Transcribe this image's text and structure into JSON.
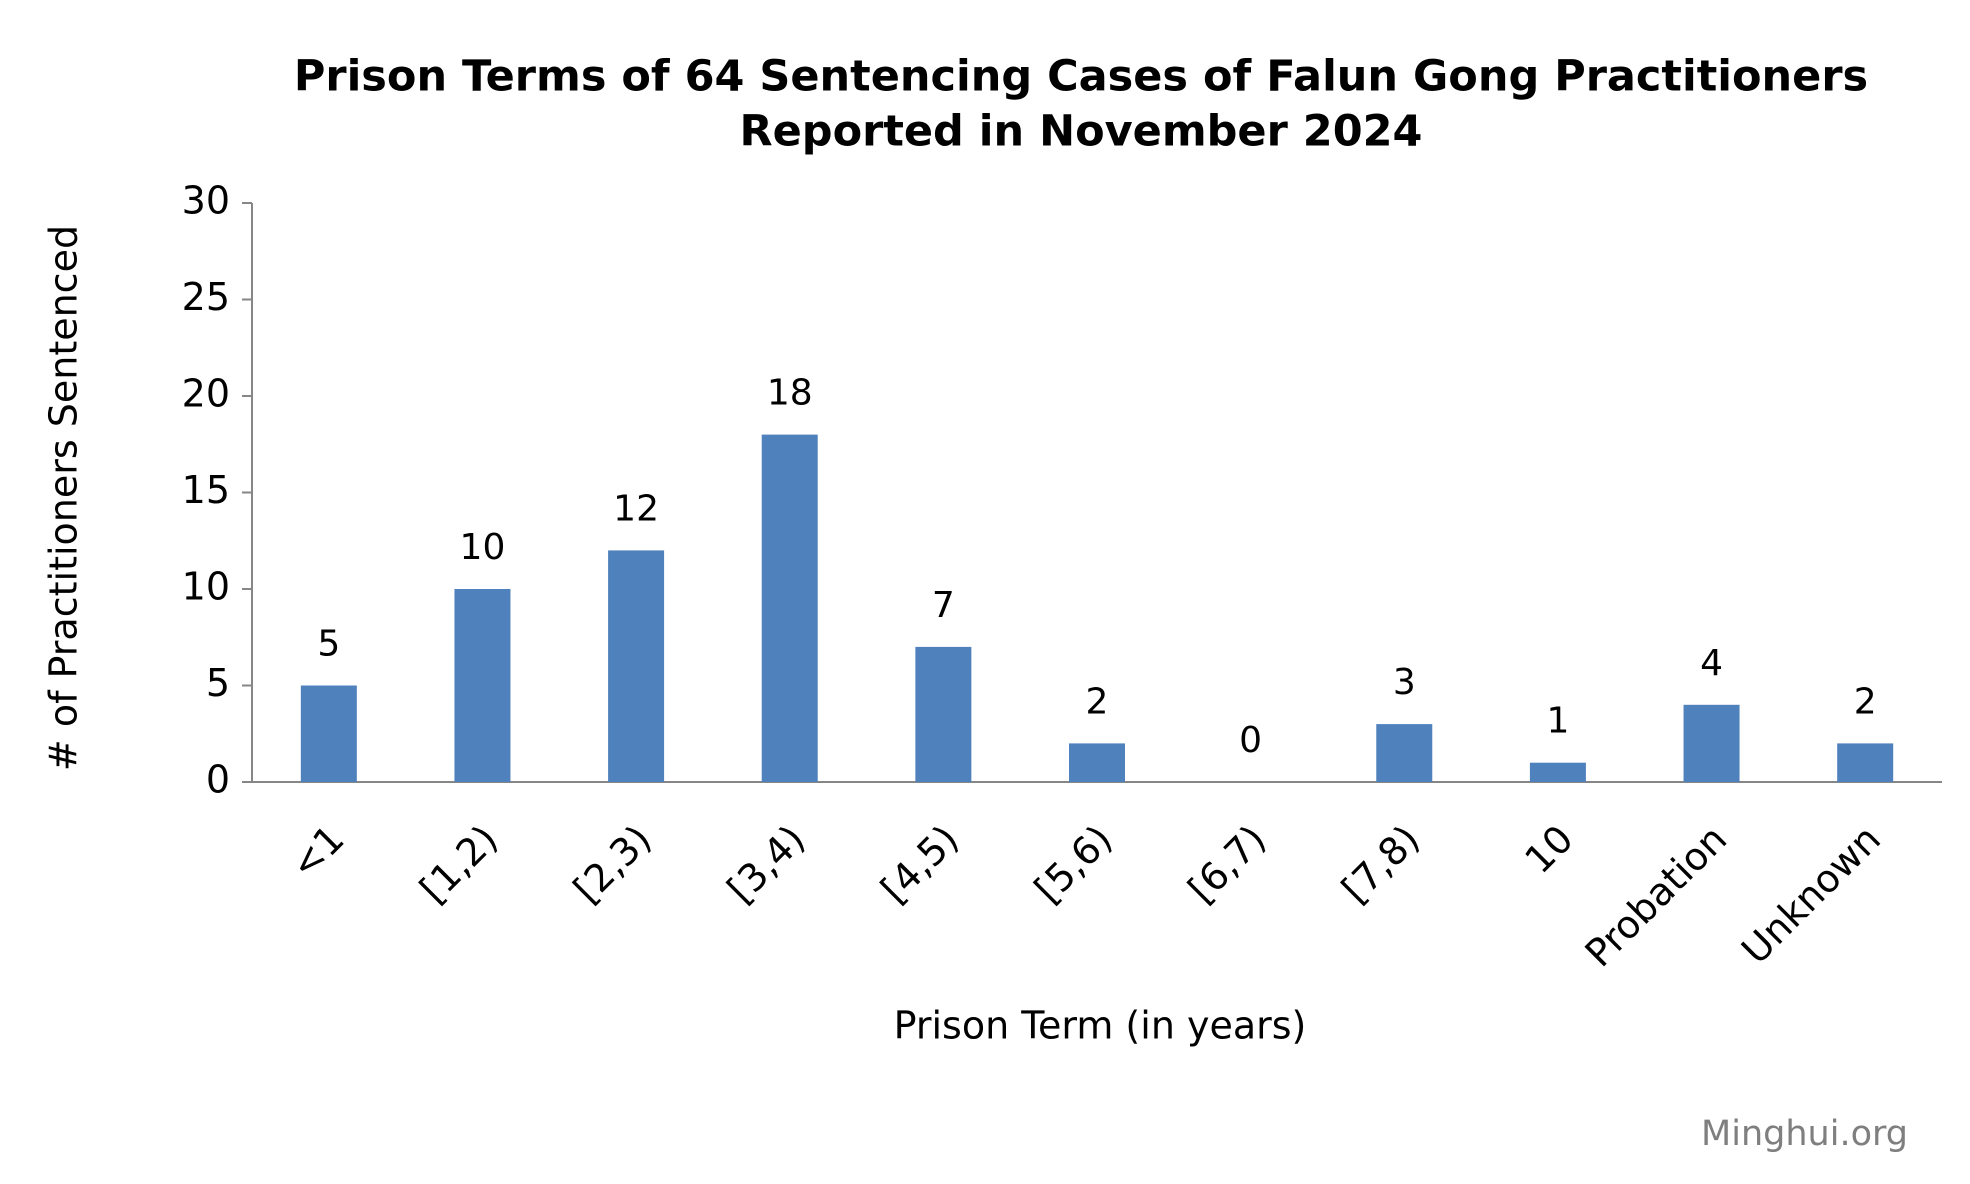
{
  "chart_data": {
    "type": "bar",
    "title": [
      "Prison Terms of 64 Sentencing Cases of Falun Gong Practitioners",
      "Reported in November 2024"
    ],
    "xlabel": "Prison Term (in years)",
    "ylabel": "# of Practitioners Sentenced",
    "categories": [
      "<1",
      "[1,2)",
      "[2,3)",
      "[3,4)",
      "[4,5)",
      "[5,6)",
      "[6,7)",
      "[7,8)",
      "10",
      "Probation",
      "Unknown"
    ],
    "values": [
      5,
      10,
      12,
      18,
      7,
      2,
      0,
      3,
      1,
      4,
      2
    ],
    "color": "#4f81bd",
    "ylim": [
      0,
      30
    ],
    "yticks": [
      0,
      5,
      10,
      15,
      20,
      25,
      30
    ],
    "grid": false,
    "source": "Minghui.org"
  }
}
